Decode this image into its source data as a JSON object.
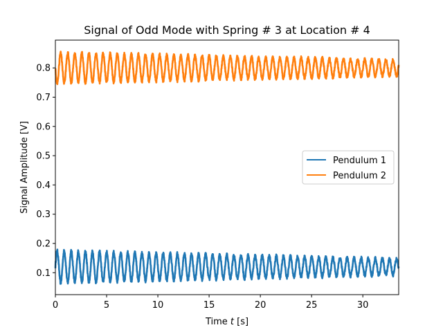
{
  "chart_data": {
    "type": "line",
    "title": "Signal of Odd Mode with Spring # 3 at Location # 4",
    "xlabel_prefix": "Time ",
    "xlabel_var": "t",
    "xlabel_suffix": " [s]",
    "ylabel": "Signal Amplitude [V]",
    "xlim": [
      0,
      33.5
    ],
    "ylim": [
      0.025,
      0.895
    ],
    "xticks": [
      0,
      5,
      10,
      15,
      20,
      25,
      30
    ],
    "yticks": [
      0.1,
      0.2,
      0.3,
      0.4,
      0.5,
      0.6,
      0.7,
      0.8
    ],
    "grid": false,
    "legend_position": "center-right",
    "series": [
      {
        "name": "Pendulum 1",
        "color": "#1f77b4",
        "mean": 0.12,
        "amplitude_start": 0.055,
        "amplitude_end": 0.027,
        "period": 0.69,
        "phase": 0.0
      },
      {
        "name": "Pendulum 2",
        "color": "#ff7f0e",
        "mean": 0.8,
        "amplitude_start": 0.052,
        "amplitude_end": 0.027,
        "period": 0.69,
        "phase": 3.14159
      }
    ]
  }
}
